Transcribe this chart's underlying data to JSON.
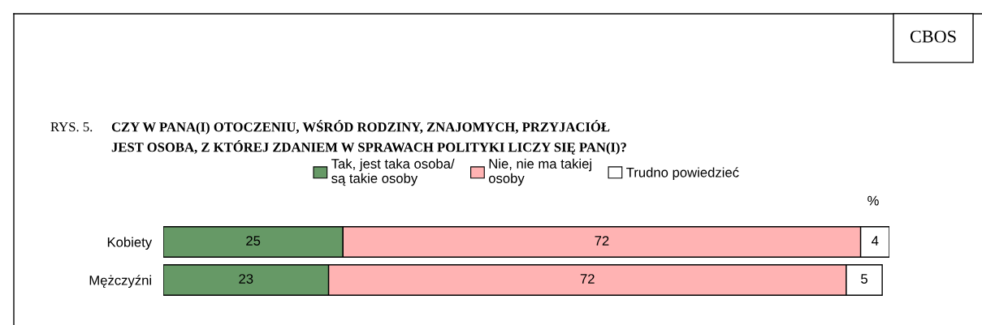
{
  "chart_data": {
    "type": "bar",
    "orientation": "horizontal",
    "stacked": true,
    "title": "CZY W PANA(I) OTOCZENIU, WŚRÓD RODZINY, ZNAJOMYCH, PRZYJACIÓŁ\nJEST OSOBA, Z KTÓREJ ZDANIEM W SPRAWACH POLITYKI LICZY SIĘ PAN(I)?",
    "annotations": [
      "CBOS",
      "RYS. 5.",
      "%"
    ],
    "categories": [
      "Kobiety",
      "Mężczyźni"
    ],
    "series": [
      {
        "name": "Tak, jest taka osoba/\nsą takie osoby",
        "color": "#669966",
        "values": [
          25,
          23
        ]
      },
      {
        "name": "Nie, nie ma takiej\nosoby",
        "color": "#ffb3b3",
        "values": [
          72,
          72
        ]
      },
      {
        "name": "Trudno powiedzieć",
        "color": "#ffffff",
        "values": [
          4,
          5
        ]
      }
    ],
    "data_labels": true,
    "legend": "top",
    "grid": false
  }
}
